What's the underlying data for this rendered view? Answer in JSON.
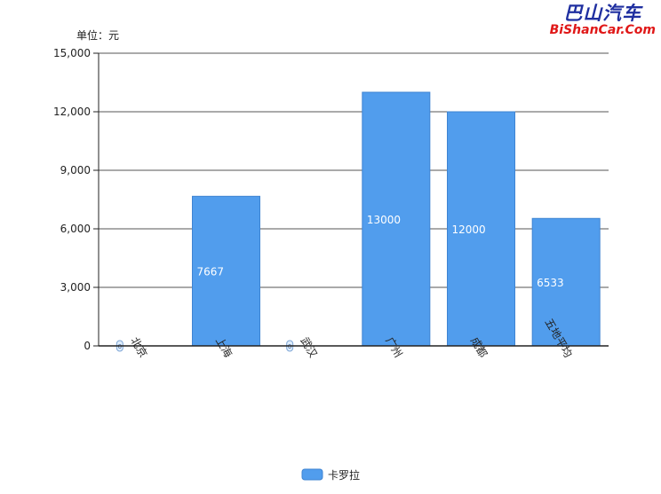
{
  "watermark": {
    "chinese": "巴山汽车",
    "english": "BiShanCar.Com"
  },
  "unit_label": "单位：元",
  "colors": {
    "bar_fill": "#519ded",
    "bar_stroke": "#3f84d2",
    "grid": "#555555",
    "axis": "#222222",
    "tick_text": "#222222",
    "data_label": "#ffffff"
  },
  "chart_data": {
    "type": "bar",
    "categories": [
      "北京",
      "上海",
      "武汉",
      "广州",
      "成都",
      "五地平均"
    ],
    "series": [
      {
        "name": "卡罗拉",
        "values": [
          0,
          7667,
          0,
          13000,
          12000,
          6533
        ]
      }
    ],
    "data_labels": [
      "0",
      "7667",
      "0",
      "13000",
      "12000",
      "6533"
    ],
    "ylim": [
      0,
      15000
    ],
    "yticks": [
      0,
      3000,
      6000,
      9000,
      12000,
      15000
    ],
    "ytick_labels": [
      "0",
      "3,000",
      "6,000",
      "9,000",
      "12,000",
      "15,000"
    ],
    "ylabel": "单位：元",
    "xlabel": "",
    "title": "",
    "grid": true,
    "legend_position": "bottom-center"
  }
}
